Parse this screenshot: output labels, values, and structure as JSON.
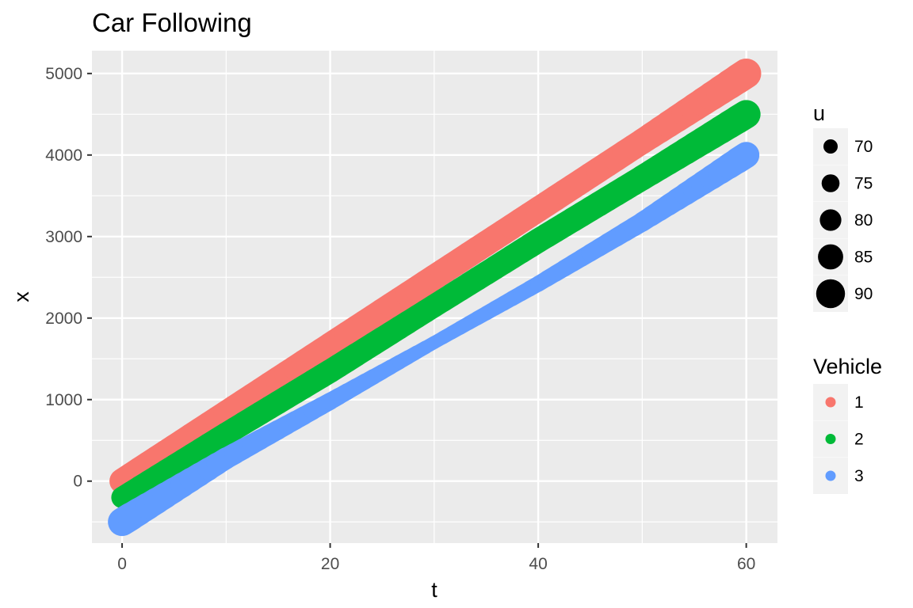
{
  "chart_data": {
    "type": "line",
    "title": "Car Following",
    "xlabel": "t",
    "ylabel": "x",
    "xlim": [
      -2.9,
      63
    ],
    "ylim": [
      -760,
      5280
    ],
    "x_ticks": [
      0,
      20,
      40,
      60
    ],
    "y_ticks": [
      0,
      1000,
      2000,
      3000,
      4000,
      5000
    ],
    "grid": true,
    "x": [
      0,
      10,
      20,
      30,
      40,
      50,
      60
    ],
    "series": [
      {
        "name": "1",
        "color": "#F8766D",
        "x_values": [
          0,
          10,
          20,
          30,
          40,
          50,
          60
        ],
        "values": [
          0,
          833,
          1667,
          2500,
          3333,
          4167,
          5000
        ]
      },
      {
        "name": "2",
        "color": "#00BA38",
        "x_values": [
          0,
          10,
          20,
          30,
          40,
          50,
          60
        ],
        "values": [
          -200,
          580,
          1350,
          2150,
          2950,
          3720,
          4500
        ]
      },
      {
        "name": "3",
        "color": "#619CFF",
        "x_values": [
          0,
          10,
          20,
          30,
          40,
          50,
          60
        ],
        "values": [
          -500,
          280,
          980,
          1700,
          2420,
          3180,
          4000
        ]
      }
    ],
    "size_series": [
      {
        "name": "1",
        "u": [
          83.3,
          83.3,
          83.3,
          83.3,
          83.3,
          83.3,
          90
        ]
      },
      {
        "name": "2",
        "u": [
          78,
          80,
          81,
          80,
          82,
          83,
          88
        ]
      },
      {
        "name": "3",
        "u": [
          88,
          78,
          72,
          66,
          70,
          75,
          85
        ]
      }
    ],
    "legend_size": {
      "title": "u",
      "entries": [
        "70",
        "75",
        "80",
        "85",
        "90"
      ],
      "values": [
        70,
        75,
        80,
        85,
        90
      ]
    },
    "legend_color": {
      "title": "Vehicle",
      "entries": [
        "1",
        "2",
        "3"
      ]
    },
    "legend_position": "right"
  }
}
